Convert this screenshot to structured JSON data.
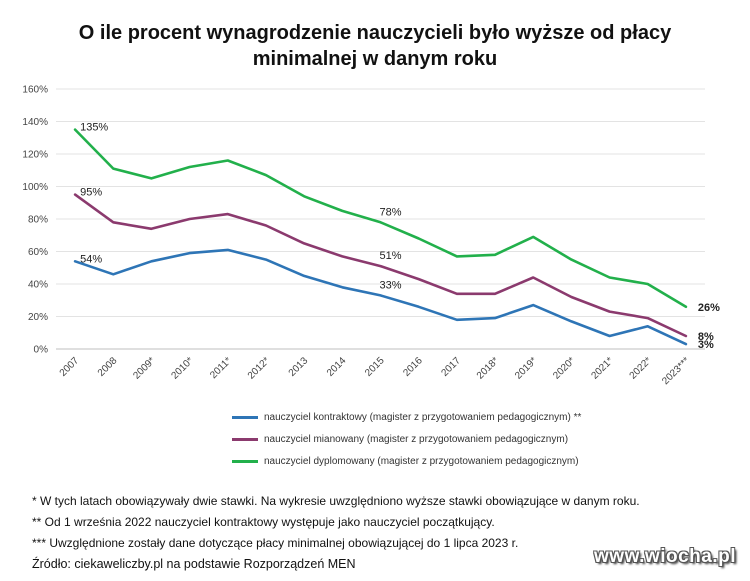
{
  "title_line1": "O ile procent wynagrodzenie nauczycieli było wyższe od płacy",
  "title_line2": "minimalnej w danym roku",
  "chart_data": {
    "type": "line",
    "title": "O ile procent wynagrodzenie nauczycieli było wyższe od płacy minimalnej w danym roku",
    "categories": [
      "2007",
      "2008",
      "2009*",
      "2010*",
      "2011*",
      "2012*",
      "2013",
      "2014",
      "2015",
      "2016",
      "2017",
      "2018*",
      "2019*",
      "2020*",
      "2021*",
      "2022*",
      "2023***"
    ],
    "y_ticks": [
      "0%",
      "20%",
      "40%",
      "60%",
      "80%",
      "100%",
      "120%",
      "140%",
      "160%"
    ],
    "ylim": [
      0,
      160
    ],
    "grid": true,
    "legend_position": "bottom",
    "series": [
      {
        "name": "nauczyciel kontraktowy (magister z przygotowaniem pedagogicznym) **",
        "color": "#2e75b6",
        "values": [
          54,
          46,
          54,
          59,
          61,
          55,
          45,
          38,
          33,
          26,
          18,
          19,
          27,
          17,
          8,
          14,
          3
        ]
      },
      {
        "name": "nauczyciel mianowany (magister z przygotowaniem pedagogicznym)",
        "color": "#8b3a6e",
        "values": [
          95,
          78,
          74,
          80,
          83,
          76,
          65,
          57,
          51,
          43,
          34,
          34,
          44,
          32,
          23,
          19,
          8
        ]
      },
      {
        "name": "nauczyciel dyplomowany (magister z przygotowaniem pedagogicznym)",
        "color": "#22b04b",
        "values": [
          135,
          111,
          105,
          112,
          116,
          107,
          94,
          85,
          78,
          68,
          57,
          58,
          69,
          55,
          44,
          40,
          26
        ]
      }
    ],
    "annotations": [
      {
        "series": 0,
        "index": 0,
        "text": "54%"
      },
      {
        "series": 1,
        "index": 0,
        "text": "95%"
      },
      {
        "series": 2,
        "index": 0,
        "text": "135%"
      },
      {
        "series": 0,
        "index": 8,
        "text": "33%"
      },
      {
        "series": 1,
        "index": 8,
        "text": "51%"
      },
      {
        "series": 2,
        "index": 8,
        "text": "78%"
      },
      {
        "series": 0,
        "index": 16,
        "text": "3%",
        "bold": true
      },
      {
        "series": 1,
        "index": 16,
        "text": "8%",
        "bold": true
      },
      {
        "series": 2,
        "index": 16,
        "text": "26%",
        "bold": true
      }
    ]
  },
  "notes": [
    "* W tych latach obowiązywały dwie stawki. Na wykresie uwzględniono wyższe stawki obowiązujące w danym roku.",
    "** Od 1 września 2022 nauczyciel kontraktowy występuje jako nauczyciel początkujący.",
    "*** Uwzględnione zostały dane dotyczące płacy minimalnej obowiązującej do 1 lipca 2023 r."
  ],
  "source": "Źródło: ciekaweliczby.pl na podstawie Rozporządzeń MEN",
  "watermark": "www.wiocha.pl"
}
